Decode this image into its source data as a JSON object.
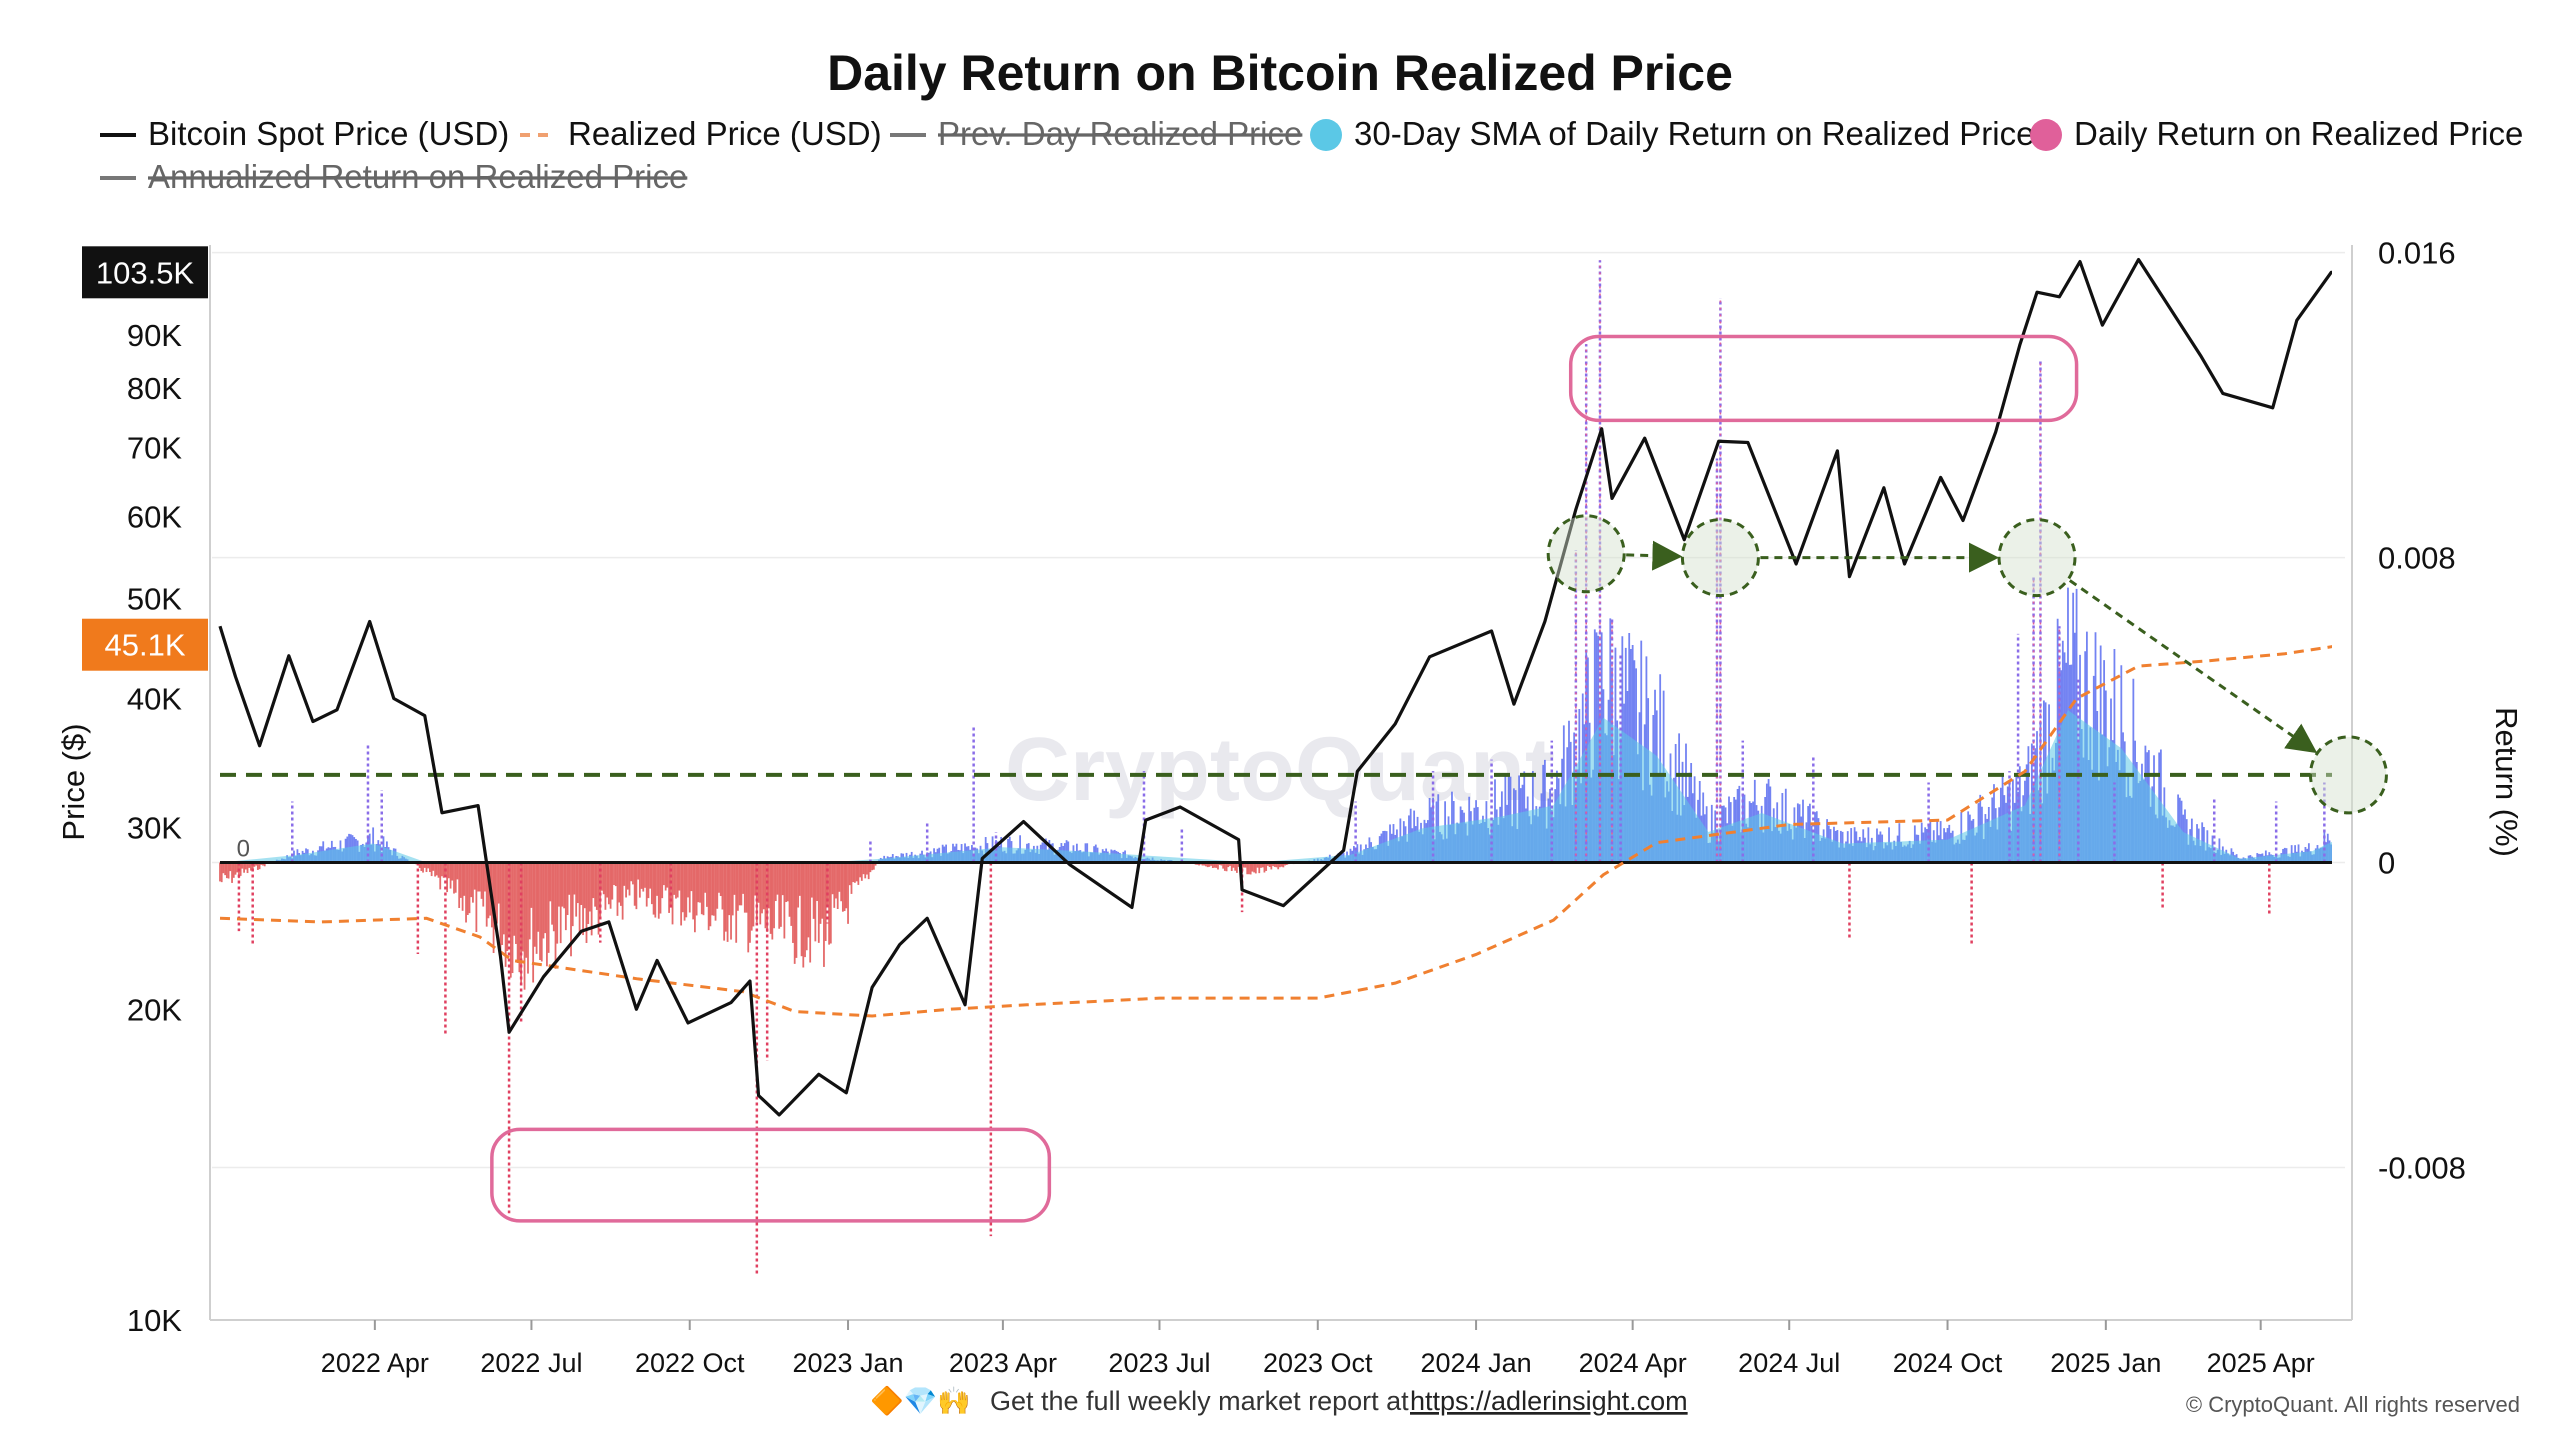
{
  "title": "Daily Return on Bitcoin Realized Price",
  "legend": [
    {
      "label": "Bitcoin Spot Price (USD)",
      "style": "solid",
      "color": "#111111",
      "hidden": false
    },
    {
      "label": "Realized Price (USD)",
      "style": "dash",
      "color": "#f0a070",
      "hidden": false
    },
    {
      "label": "Prev. Day Realized Price",
      "style": "solid",
      "color": "#777777",
      "hidden": true
    },
    {
      "label": "30-Day SMA of Daily Return on Realized Price",
      "style": "dot",
      "color": "#5bc8e6",
      "hidden": false
    },
    {
      "label": "Daily Return on Realized Price",
      "style": "dot",
      "color": "#e0609a",
      "hidden": false
    },
    {
      "label": "Annualized Return on Realized Price",
      "style": "solid",
      "color": "#777777",
      "hidden": true
    }
  ],
  "watermark": "CryptoQuant",
  "footer": {
    "emoji": "🔶💎🙌",
    "text": "Get the full weekly market report at",
    "link": "https://adlerinsight.com",
    "copyright": "© CryptoQuant. All rights reserved"
  },
  "badges": {
    "spot": "103.5K",
    "realized": "45.1K"
  },
  "colors": {
    "spot": "#111111",
    "realized": "#f08030",
    "positive": "#5b6ef0",
    "negative": "#e05050",
    "sma": "#5bc8e6",
    "threshold": "#3a5f1e",
    "highlight": "#e06a9a",
    "badge_spot": "#111111",
    "badge_realized": "#f07a1c"
  },
  "chart_data": {
    "type": "line",
    "x_ticks": [
      "2022 Apr",
      "2022 Jul",
      "2022 Oct",
      "2023 Jan",
      "2023 Apr",
      "2023 Jul",
      "2023 Oct",
      "2024 Jan",
      "2024 Apr",
      "2024 Jul",
      "2024 Oct",
      "2025 Jan",
      "2025 Apr"
    ],
    "x_tick_dates": [
      "2022-04-01",
      "2022-07-01",
      "2022-10-01",
      "2023-01-01",
      "2023-04-01",
      "2023-07-01",
      "2023-10-01",
      "2024-01-01",
      "2024-04-01",
      "2024-07-01",
      "2024-10-01",
      "2025-01-01",
      "2025-04-01"
    ],
    "x_range": [
      "2022-01-01",
      "2025-05-20"
    ],
    "left_axis": {
      "title": "Price ($)",
      "scale": "log",
      "range": [
        10000,
        110000
      ],
      "ticks": [
        10000,
        20000,
        30000,
        40000,
        50000,
        60000,
        70000,
        80000,
        90000
      ],
      "tick_labels": [
        "10K",
        "20K",
        "30K",
        "40K",
        "50K",
        "60K",
        "70K",
        "80K",
        "90K"
      ],
      "zero_label": "0"
    },
    "right_axis": {
      "title": "Return (%)",
      "range": [
        -0.012,
        0.0162
      ],
      "ticks": [
        -0.008,
        0,
        0.008,
        0.016
      ],
      "tick_labels": [
        "-0.008",
        "0",
        "0.008",
        "0.016"
      ]
    },
    "threshold_line": 0.0023,
    "series": [
      {
        "name": "Bitcoin Spot Price (USD)",
        "points": [
          [
            "2022-01-01",
            47000
          ],
          [
            "2022-01-10",
            42000
          ],
          [
            "2022-01-24",
            36000
          ],
          [
            "2022-02-10",
            44000
          ],
          [
            "2022-02-24",
            38000
          ],
          [
            "2022-03-10",
            39000
          ],
          [
            "2022-03-29",
            47500
          ],
          [
            "2022-04-12",
            40000
          ],
          [
            "2022-04-30",
            38500
          ],
          [
            "2022-05-10",
            31000
          ],
          [
            "2022-05-31",
            31500
          ],
          [
            "2022-06-13",
            22500
          ],
          [
            "2022-06-18",
            19000
          ],
          [
            "2022-07-08",
            21500
          ],
          [
            "2022-07-30",
            23800
          ],
          [
            "2022-08-15",
            24300
          ],
          [
            "2022-08-31",
            20000
          ],
          [
            "2022-09-12",
            22300
          ],
          [
            "2022-09-30",
            19400
          ],
          [
            "2022-10-25",
            20300
          ],
          [
            "2022-11-05",
            21300
          ],
          [
            "2022-11-10",
            16500
          ],
          [
            "2022-11-22",
            15800
          ],
          [
            "2022-12-15",
            17300
          ],
          [
            "2022-12-31",
            16600
          ],
          [
            "2023-01-15",
            21000
          ],
          [
            "2023-01-31",
            23100
          ],
          [
            "2023-02-16",
            24500
          ],
          [
            "2023-03-10",
            20200
          ],
          [
            "2023-03-20",
            28000
          ],
          [
            "2023-04-13",
            30400
          ],
          [
            "2023-05-10",
            27600
          ],
          [
            "2023-06-15",
            25100
          ],
          [
            "2023-06-23",
            30500
          ],
          [
            "2023-07-13",
            31400
          ],
          [
            "2023-08-16",
            29200
          ],
          [
            "2023-08-18",
            26100
          ],
          [
            "2023-09-11",
            25200
          ],
          [
            "2023-10-16",
            28500
          ],
          [
            "2023-10-24",
            34000
          ],
          [
            "2023-11-15",
            37800
          ],
          [
            "2023-12-05",
            43900
          ],
          [
            "2024-01-10",
            46500
          ],
          [
            "2024-01-23",
            39500
          ],
          [
            "2024-02-10",
            47500
          ],
          [
            "2024-02-28",
            61000
          ],
          [
            "2024-03-14",
            73000
          ],
          [
            "2024-03-20",
            62500
          ],
          [
            "2024-04-08",
            71500
          ],
          [
            "2024-05-01",
            57000
          ],
          [
            "2024-05-21",
            71000
          ],
          [
            "2024-06-07",
            70800
          ],
          [
            "2024-07-05",
            54000
          ],
          [
            "2024-07-29",
            69500
          ],
          [
            "2024-08-05",
            52500
          ],
          [
            "2024-08-25",
            64000
          ],
          [
            "2024-09-06",
            54000
          ],
          [
            "2024-09-27",
            65500
          ],
          [
            "2024-10-10",
            59500
          ],
          [
            "2024-10-29",
            72500
          ],
          [
            "2024-11-12",
            88000
          ],
          [
            "2024-11-22",
            99000
          ],
          [
            "2024-12-05",
            98000
          ],
          [
            "2024-12-17",
            106000
          ],
          [
            "2024-12-30",
            92000
          ],
          [
            "2025-01-20",
            106500
          ],
          [
            "2025-02-03",
            98000
          ],
          [
            "2025-02-25",
            86000
          ],
          [
            "2025-03-10",
            79000
          ],
          [
            "2025-04-08",
            76500
          ],
          [
            "2025-04-22",
            93000
          ],
          [
            "2025-05-12",
            103500
          ],
          [
            "2025-05-20",
            103500
          ]
        ]
      },
      {
        "name": "Realized Price (USD)",
        "points": [
          [
            "2022-01-01",
            24500
          ],
          [
            "2022-03-01",
            24300
          ],
          [
            "2022-05-01",
            24500
          ],
          [
            "2022-06-01",
            23500
          ],
          [
            "2022-06-20",
            22300
          ],
          [
            "2022-09-01",
            21400
          ],
          [
            "2022-11-01",
            20800
          ],
          [
            "2022-12-01",
            19900
          ],
          [
            "2023-01-15",
            19700
          ],
          [
            "2023-03-01",
            20000
          ],
          [
            "2023-04-15",
            20200
          ],
          [
            "2023-07-01",
            20500
          ],
          [
            "2023-10-01",
            20500
          ],
          [
            "2023-11-15",
            21200
          ],
          [
            "2024-01-01",
            22600
          ],
          [
            "2024-02-15",
            24400
          ],
          [
            "2024-03-15",
            27000
          ],
          [
            "2024-04-15",
            29000
          ],
          [
            "2024-07-01",
            30200
          ],
          [
            "2024-10-01",
            30500
          ],
          [
            "2024-11-15",
            34000
          ],
          [
            "2024-12-15",
            40000
          ],
          [
            "2025-01-20",
            43000
          ],
          [
            "2025-03-01",
            43500
          ],
          [
            "2025-04-15",
            44200
          ],
          [
            "2025-05-20",
            45100
          ]
        ]
      },
      {
        "name": "30-Day SMA of Daily Return on Realized Price",
        "points": [
          [
            "2022-01-01",
            -0.0004
          ],
          [
            "2022-02-15",
            0.0002
          ],
          [
            "2022-03-31",
            0.0005
          ],
          [
            "2022-05-01",
            -0.0002
          ],
          [
            "2022-06-25",
            -0.0018
          ],
          [
            "2022-09-01",
            -0.0007
          ],
          [
            "2022-11-20",
            -0.0014
          ],
          [
            "2022-12-20",
            -0.0015
          ],
          [
            "2023-01-20",
            0.0001
          ],
          [
            "2023-04-01",
            0.0004
          ],
          [
            "2023-05-15",
            0.0003
          ],
          [
            "2023-08-25",
            -0.0002
          ],
          [
            "2023-10-20",
            0.0002
          ],
          [
            "2023-12-01",
            0.0009
          ],
          [
            "2024-01-15",
            0.0012
          ],
          [
            "2024-02-15",
            0.0015
          ],
          [
            "2024-03-15",
            0.0038
          ],
          [
            "2024-04-15",
            0.0028
          ],
          [
            "2024-05-15",
            0.0008
          ],
          [
            "2024-06-15",
            0.0013
          ],
          [
            "2024-08-01",
            0.0005
          ],
          [
            "2024-10-01",
            0.0006
          ],
          [
            "2024-11-15",
            0.0015
          ],
          [
            "2024-12-10",
            0.004
          ],
          [
            "2025-01-10",
            0.003
          ],
          [
            "2025-02-15",
            0.0008
          ],
          [
            "2025-03-20",
            0.0001
          ],
          [
            "2025-05-01",
            0.0003
          ],
          [
            "2025-05-20",
            0.0007
          ]
        ]
      },
      {
        "name": "Daily Return on Realized Price",
        "spikes": [
          [
            "2022-01-12",
            -0.0018
          ],
          [
            "2022-01-20",
            -0.0022
          ],
          [
            "2022-02-12",
            0.0016
          ],
          [
            "2022-03-28",
            0.0031
          ],
          [
            "2022-04-05",
            0.0019
          ],
          [
            "2022-04-26",
            -0.0024
          ],
          [
            "2022-05-12",
            -0.0045
          ],
          [
            "2022-06-18",
            -0.0092
          ],
          [
            "2022-06-25",
            -0.0042
          ],
          [
            "2022-08-10",
            -0.0021
          ],
          [
            "2022-09-20",
            -0.0012
          ],
          [
            "2022-11-09",
            -0.0108
          ],
          [
            "2022-11-15",
            -0.0052
          ],
          [
            "2022-12-20",
            -0.0016
          ],
          [
            "2023-01-14",
            0.0006
          ],
          [
            "2023-02-16",
            0.0011
          ],
          [
            "2023-03-15",
            0.0036
          ],
          [
            "2023-03-25",
            -0.0098
          ],
          [
            "2023-03-28",
            0.0008
          ],
          [
            "2023-06-22",
            0.0024
          ],
          [
            "2023-07-14",
            0.0009
          ],
          [
            "2023-08-18",
            -0.0013
          ],
          [
            "2023-10-23",
            0.0016
          ],
          [
            "2023-12-07",
            0.0024
          ],
          [
            "2024-01-10",
            0.0027
          ],
          [
            "2024-02-14",
            0.0032
          ],
          [
            "2024-02-28",
            0.0082
          ],
          [
            "2024-03-05",
            0.0136
          ],
          [
            "2024-03-13",
            0.0158
          ],
          [
            "2024-03-20",
            0.0064
          ],
          [
            "2024-03-25",
            0.0055
          ],
          [
            "2024-05-20",
            0.0106
          ],
          [
            "2024-05-22",
            0.0148
          ],
          [
            "2024-06-04",
            0.0032
          ],
          [
            "2024-07-15",
            0.0028
          ],
          [
            "2024-08-05",
            -0.002
          ],
          [
            "2024-09-20",
            0.0021
          ],
          [
            "2024-10-15",
            -0.0022
          ],
          [
            "2024-11-06",
            0.0024
          ],
          [
            "2024-11-11",
            0.006
          ],
          [
            "2024-11-20",
            0.0075
          ],
          [
            "2024-11-24",
            0.0132
          ],
          [
            "2024-12-05",
            0.0062
          ],
          [
            "2024-12-16",
            0.0048
          ],
          [
            "2025-01-06",
            0.0021
          ],
          [
            "2025-02-03",
            -0.0012
          ],
          [
            "2025-03-05",
            0.0017
          ],
          [
            "2025-04-06",
            -0.0014
          ],
          [
            "2025-04-10",
            0.0016
          ],
          [
            "2025-05-08",
            0.0021
          ]
        ]
      }
    ],
    "annotations": {
      "rectangles": [
        {
          "from": "2024-02-25",
          "to": "2024-12-15",
          "top": 0.0138,
          "bottom": 0.0116
        },
        {
          "from": "2022-06-08",
          "to": "2023-04-28",
          "top": -0.007,
          "bottom": -0.0094
        }
      ],
      "circles": [
        {
          "date": "2024-03-05",
          "value": 0.0081
        },
        {
          "date": "2024-05-22",
          "value": 0.008
        },
        {
          "date": "2024-11-22",
          "value": 0.008
        },
        {
          "date": "2025-05-22",
          "value": 0.0023
        }
      ],
      "arrows": [
        {
          "from": 0,
          "to": 1
        },
        {
          "from": 1,
          "to": 2
        },
        {
          "from": 2,
          "to": 3
        }
      ]
    }
  }
}
